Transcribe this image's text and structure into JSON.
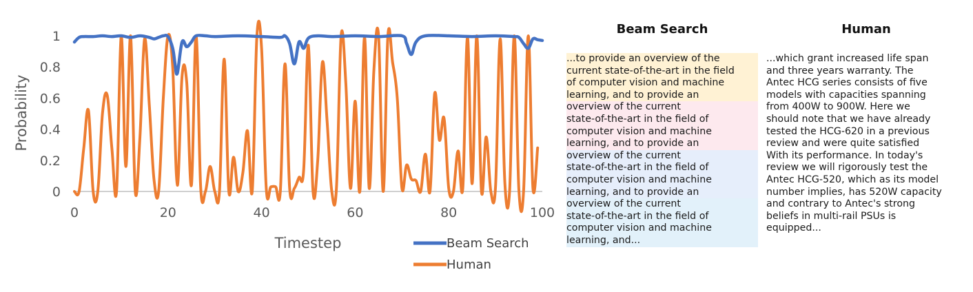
{
  "chart_data": {
    "type": "line",
    "ylabel": "Probability",
    "xlabel": "Timestep",
    "xlim": [
      0,
      100
    ],
    "ylim": [
      0,
      1
    ],
    "xticks": [
      "0",
      "20",
      "40",
      "60",
      "80",
      "100"
    ],
    "yticks": [
      "0",
      "0.2",
      "0.4",
      "0.6",
      "0.8",
      "1"
    ],
    "legend_position": "bottom-right",
    "series": [
      {
        "name": "Beam Search",
        "color": "#4472C4",
        "x": [
          0,
          1,
          2,
          4,
          6,
          8,
          10,
          12,
          14,
          16,
          17,
          18,
          19,
          20,
          21,
          21.5,
          22,
          23,
          24,
          25,
          26,
          28,
          30,
          35,
          40,
          44,
          45,
          46,
          47,
          48,
          49,
          50,
          52,
          55,
          60,
          65,
          70,
          71,
          72,
          73,
          75,
          80,
          85,
          90,
          94,
          95,
          96,
          97,
          98,
          99,
          100
        ],
        "y": [
          0.96,
          0.99,
          0.995,
          0.995,
          1.0,
          0.995,
          1.0,
          0.99,
          1.0,
          0.99,
          0.98,
          0.99,
          1.0,
          0.995,
          0.92,
          0.82,
          0.76,
          0.96,
          0.93,
          0.96,
          1.0,
          1.0,
          0.995,
          1.0,
          0.995,
          0.99,
          1.0,
          0.95,
          0.82,
          0.96,
          0.92,
          0.985,
          1.0,
          0.995,
          1.0,
          0.995,
          1.0,
          0.95,
          0.88,
          0.96,
          1.0,
          1.0,
          0.995,
          1.0,
          0.995,
          0.99,
          0.95,
          0.92,
          0.98,
          0.975,
          0.97
        ]
      },
      {
        "name": "Human",
        "color": "#ED7D31",
        "x": [
          0,
          1,
          2,
          3,
          4,
          5,
          6,
          7,
          8,
          9,
          10,
          11,
          12,
          13,
          14,
          15,
          16,
          17,
          18,
          19,
          20,
          21,
          22,
          23,
          24,
          25,
          26,
          27,
          28,
          29,
          30,
          31,
          32,
          33,
          34,
          35,
          36,
          37,
          38,
          39,
          40,
          41,
          42,
          43,
          44,
          45,
          46,
          47,
          48,
          49,
          50,
          51,
          52,
          53,
          54,
          55,
          56,
          57,
          58,
          59,
          60,
          61,
          62,
          63,
          64,
          65,
          66,
          67,
          68,
          69,
          70,
          71,
          72,
          73,
          74,
          75,
          76,
          77,
          78,
          79,
          80,
          81,
          82,
          83,
          84,
          85,
          86,
          87,
          88,
          89,
          90,
          91,
          92,
          93,
          94,
          95,
          96,
          97,
          98,
          99
        ],
        "y": [
          0,
          0,
          0.28,
          0.52,
          0.0,
          0.0,
          0.5,
          0.62,
          0.28,
          0,
          1.0,
          0.16,
          1.0,
          0.0,
          0.35,
          0.98,
          0.56,
          0.08,
          0.0,
          0.6,
          1.0,
          0.8,
          0.04,
          0.74,
          0.7,
          0.04,
          1.0,
          0.02,
          0.0,
          0.16,
          0.0,
          0.0,
          0.85,
          0.0,
          0.22,
          0.0,
          0.12,
          0.39,
          0.0,
          1.0,
          0.92,
          0.02,
          0.03,
          0.03,
          0.0,
          0.82,
          0.02,
          0.02,
          0.09,
          0.14,
          0.94,
          0.0,
          0.2,
          0.83,
          0.45,
          0.0,
          0.02,
          1.0,
          0.7,
          0.02,
          0.58,
          0.0,
          0.99,
          0.02,
          0.78,
          1.0,
          0.0,
          1.0,
          0.83,
          0.6,
          0.02,
          0.17,
          0.08,
          0.07,
          0.0,
          0.24,
          0.0,
          0.63,
          0.33,
          0.47,
          0.02,
          0.0,
          0.26,
          0.02,
          0.99,
          0.05,
          1.0,
          0.0,
          0.35,
          0.0,
          0.03,
          0.98,
          0.05,
          0.0,
          1.0,
          0.01,
          0.0,
          1.0,
          0.02,
          0.28
        ]
      }
    ]
  },
  "panels": {
    "beam": {
      "title": "Beam Search",
      "segments": [
        {
          "color": "#FFF2D4",
          "lines": [
            "...to provide an overview of the",
            "current state-of-the-art in the field",
            "of computer vision and machine",
            "learning, and to provide an"
          ]
        },
        {
          "color": "#FDE9EE",
          "lines": [
            "overview of the current",
            "state-of-the-art in the field of",
            "computer vision and machine",
            "learning, and to provide an"
          ]
        },
        {
          "color": "#E6EEFB",
          "lines": [
            "overview of the current",
            "state-of-the-art in the field of",
            "computer vision and machine",
            "learning, and to provide an"
          ]
        },
        {
          "color": "#E2F1FA",
          "lines": [
            "overview of the current",
            "state-of-the-art in the field of",
            "computer vision and machine",
            "learning, and..."
          ]
        }
      ]
    },
    "human": {
      "title": "Human",
      "lines": [
        "...which grant increased life span",
        "and three years warranty. The",
        "Antec HCG series consists of five",
        "models with capacities spanning",
        "from 400W to 900W. Here we",
        "should note that we have already",
        "tested the HCG-620 in a previous",
        "review and were quite satisfied",
        "With its performance. In today's",
        "review we will rigorously test the",
        "Antec HCG-520, which as its model",
        "number implies, has 520W capacity",
        "and contrary to Antec's strong",
        "beliefs in multi-rail PSUs is",
        "equipped..."
      ]
    }
  }
}
